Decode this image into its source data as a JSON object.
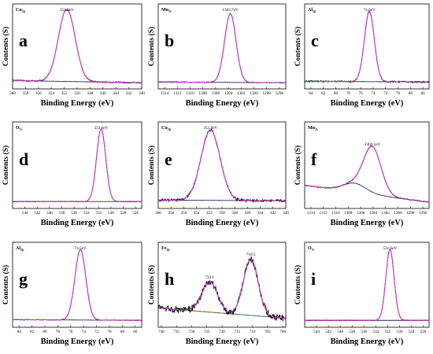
{
  "figure": {
    "colors": {
      "raw": "#000000",
      "envelope": "#cc33cc",
      "background": "#22226a",
      "peak_a": "#cc33cc",
      "peak_b": "#8b6a2a",
      "peak_c": "#2e8a8a"
    }
  },
  "chart_data": [
    {
      "panel": "a",
      "type": "line",
      "title": "Cu2p",
      "title_main": "Cu",
      "title_sub": "2p",
      "xlabel": "Binding Energy (eV)",
      "ylabel": "Contents (S)",
      "xlim": [
        360,
        340
      ],
      "xticks": [
        360,
        358,
        356,
        354,
        352,
        350,
        348,
        346,
        344,
        342,
        340
      ],
      "x_reversed": true,
      "noise": 0.5,
      "peaks": [
        {
          "center": 351.6,
          "sigma": 1.3,
          "amplitude": 1.0,
          "label": "351.6eV"
        }
      ],
      "background": [
        0.05,
        0.02
      ]
    },
    {
      "panel": "b",
      "type": "line",
      "title": "Mn2s",
      "title_main": "Mn",
      "title_sub": "2s",
      "xlabel": "Binding Energy (eV)",
      "ylabel": "Contents (S)",
      "xlim": [
        1315,
        1295
      ],
      "xticks": [
        1314,
        1312,
        1310,
        1308,
        1306,
        1304,
        1302,
        1300,
        1298,
        1296
      ],
      "x_reversed": true,
      "noise": 0.35,
      "peaks": [
        {
          "center": 1303.7,
          "sigma": 0.9,
          "amplitude": 0.95,
          "label": "1303.7eV"
        }
      ],
      "background": [
        0.03,
        0.02
      ]
    },
    {
      "panel": "c",
      "type": "line",
      "title": "Al2p",
      "title_main": "Al",
      "title_sub": "2p",
      "xlabel": "Binding Energy (eV)",
      "ylabel": "Contents (S)",
      "xlim": [
        85,
        65
      ],
      "xticks": [
        84,
        82,
        80,
        78,
        76,
        74,
        72,
        70,
        68,
        66
      ],
      "x_reversed": true,
      "noise": 0.6,
      "peaks": [
        {
          "center": 74.6,
          "sigma": 0.8,
          "amplitude": 0.97,
          "label": "74.6eV"
        }
      ],
      "background": [
        0.04,
        0.03
      ]
    },
    {
      "panel": "d",
      "type": "line",
      "title": "O1s",
      "title_main": "O",
      "title_sub": "1s",
      "xlabel": "Binding Energy (eV)",
      "ylabel": "Contents (S)",
      "xlim": [
        546,
        525
      ],
      "xticks": [
        544,
        542,
        540,
        538,
        536,
        534,
        532,
        530,
        528,
        526
      ],
      "x_reversed": true,
      "noise": 0.25,
      "peaks": [
        {
          "center": 531.6,
          "sigma": 0.75,
          "amplitude": 0.98,
          "label": "531.6eV"
        }
      ],
      "background": [
        0.03,
        0.03
      ]
    },
    {
      "panel": "e",
      "type": "line",
      "title": "Cu2p",
      "title_main": "Cu",
      "title_sub": "2p",
      "xlabel": "Binding Energy (eV)",
      "ylabel": "Contents (S)",
      "xlim": [
        360,
        340
      ],
      "xticks": [
        360,
        358,
        356,
        354,
        352,
        350,
        348,
        346,
        344,
        342,
        340
      ],
      "x_reversed": true,
      "noise": 1.0,
      "peaks": [
        {
          "center": 351.8,
          "sigma": 1.5,
          "amplitude": 0.95,
          "label": "351.8eV"
        }
      ],
      "background": [
        0.05,
        0.04
      ]
    },
    {
      "panel": "f",
      "type": "line",
      "title": "Mn2s",
      "title_main": "Mn",
      "title_sub": "2s",
      "xlabel": "Binding Energy (eV)",
      "ylabel": "Contents (S)",
      "xlim": [
        1315,
        1295
      ],
      "xticks": [
        1314,
        1312,
        1310,
        1308,
        1306,
        1304,
        1302,
        1300,
        1298,
        1296
      ],
      "x_reversed": true,
      "noise": 0.4,
      "peaks": [
        {
          "center": 1304.1,
          "sigma": 1.4,
          "amplitude": 0.62,
          "label": "1304.1eV"
        }
      ],
      "background": [
        0.25,
        0.02
      ],
      "shoulder": {
        "center": 1307.0,
        "sigma": 1.8,
        "amplitude": 0.12
      }
    },
    {
      "panel": "g",
      "type": "line",
      "title": "Al2p",
      "title_main": "Al",
      "title_sub": "2p",
      "xlabel": "Binding Energy (eV)",
      "ylabel": "Contents (S)",
      "xlim": [
        85,
        65
      ],
      "xticks": [
        84,
        82,
        80,
        78,
        76,
        74,
        72,
        70,
        68,
        66
      ],
      "x_reversed": true,
      "noise": 0.3,
      "peaks": [
        {
          "center": 74.5,
          "sigma": 0.85,
          "amplitude": 0.97,
          "label": "74.5eV"
        }
      ],
      "background": [
        0.04,
        0.03
      ]
    },
    {
      "panel": "h",
      "type": "line",
      "title": "Fe2p",
      "title_main": "Fe",
      "title_sub": "2p",
      "xlabel": "Binding Energy (eV)",
      "ylabel": "Contents (S)",
      "xlim": [
        741,
        699
      ],
      "xticks": [
        740,
        735,
        730,
        725,
        720,
        715,
        710,
        705,
        700
      ],
      "x_reversed": true,
      "noise": 2.6,
      "peaks": [
        {
          "center": 724.1,
          "sigma": 2.6,
          "amplitude": 0.42,
          "label": "724.1"
        },
        {
          "center": 710.5,
          "sigma": 2.4,
          "amplitude": 0.78,
          "label": "710.5"
        }
      ],
      "background": [
        0.2,
        0.06
      ]
    },
    {
      "panel": "i",
      "type": "line",
      "title": "O1s",
      "title_main": "O",
      "title_sub": "1s",
      "xlabel": "Binding Energy (eV)",
      "ylabel": "Contents (S)",
      "xlim": [
        546,
        525
      ],
      "xticks": [
        544,
        542,
        540,
        538,
        536,
        534,
        532,
        530,
        528,
        526
      ],
      "x_reversed": true,
      "noise": 0.25,
      "peaks": [
        {
          "center": 531.6,
          "sigma": 0.7,
          "amplitude": 0.98,
          "label": "531.6eV"
        }
      ],
      "background": [
        0.03,
        0.03
      ]
    }
  ]
}
